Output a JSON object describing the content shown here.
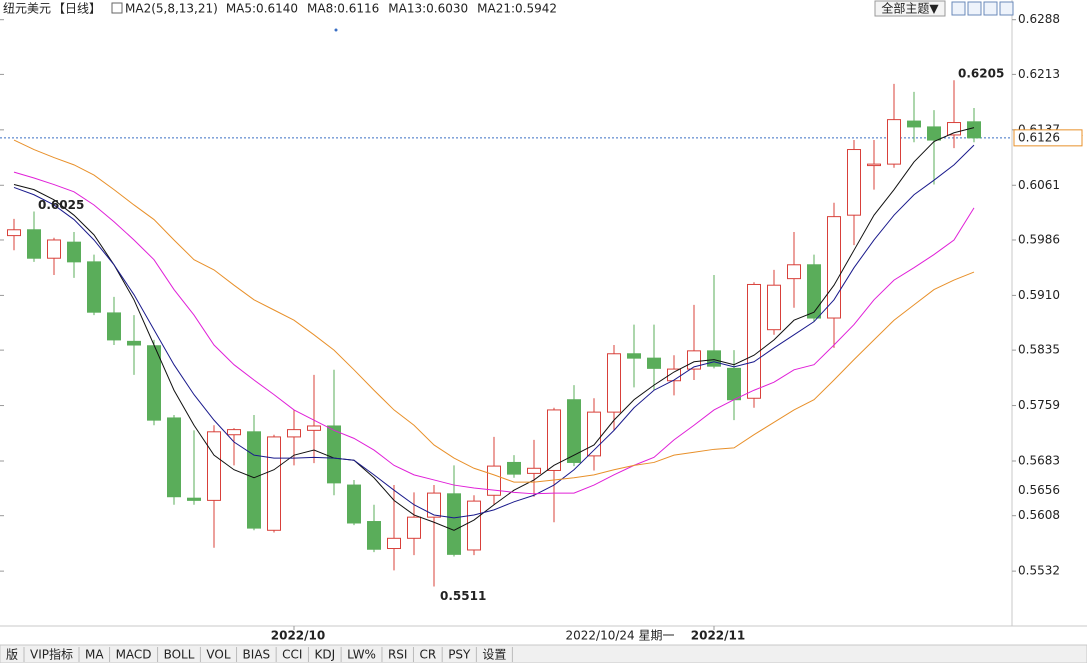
{
  "chart_data": {
    "type": "candlestick",
    "title": "纽元美元",
    "period": "【日线】",
    "indicator": "MA2(5,8,13,21)",
    "categories": [
      null,
      null,
      null,
      null,
      null,
      null,
      null,
      null,
      null,
      null,
      null,
      null,
      null,
      null,
      "2022/10",
      null,
      null,
      null,
      null,
      null,
      null,
      null,
      null,
      null,
      null,
      null,
      null,
      null,
      null,
      null,
      null,
      null,
      null,
      null,
      null,
      "2022/11",
      null,
      null,
      null,
      null,
      null,
      null,
      null,
      null,
      null,
      null,
      null,
      null,
      null
    ],
    "series": [
      {
        "type": "candlestick",
        "up_color": "#d8403a",
        "down_color": "#5aad5a",
        "open": [
          0.5992,
          0.6,
          0.5961,
          0.5983,
          0.5956,
          0.5886,
          0.5847,
          0.5841,
          0.5742,
          0.5632,
          0.5629,
          0.5719,
          0.5723,
          0.5588,
          0.5716,
          0.5725,
          0.5731,
          0.565,
          0.56,
          0.5563,
          0.5577,
          0.5606,
          0.5638,
          0.5561,
          0.5636,
          0.5681,
          0.5666,
          0.567,
          0.5767,
          0.569,
          0.575,
          0.583,
          0.5824,
          0.5793,
          0.5809,
          0.5834,
          0.581,
          0.5769,
          0.5863,
          0.5933,
          0.5952,
          0.5879,
          0.602,
          0.6088,
          0.609,
          0.6149,
          0.6141,
          0.613,
          0.6148
        ],
        "high": [
          0.6015,
          0.6025,
          0.5989,
          0.5997,
          0.5966,
          0.5908,
          0.5883,
          0.5849,
          0.5746,
          0.5725,
          0.5732,
          0.5728,
          0.5746,
          0.5719,
          0.5753,
          0.5801,
          0.5808,
          0.5657,
          0.5623,
          0.565,
          0.564,
          0.565,
          0.5677,
          0.5636,
          0.5716,
          0.5691,
          0.5712,
          0.5756,
          0.5787,
          0.5769,
          0.5842,
          0.587,
          0.587,
          0.5828,
          0.5897,
          0.5938,
          0.5835,
          0.5928,
          0.5945,
          0.5997,
          0.5966,
          0.6037,
          0.6123,
          0.6123,
          0.62,
          0.6189,
          0.6164,
          0.6205,
          0.6167
        ],
        "low": [
          0.5972,
          0.5956,
          0.5938,
          0.5934,
          0.5883,
          0.5842,
          0.5801,
          0.5732,
          0.5623,
          0.5623,
          0.5564,
          0.5677,
          0.5588,
          0.5585,
          0.5677,
          0.568,
          0.5636,
          0.5595,
          0.5558,
          0.5533,
          0.5554,
          0.5511,
          0.5552,
          0.5554,
          0.5623,
          0.566,
          0.5634,
          0.5599,
          0.5676,
          0.567,
          0.5725,
          0.5784,
          0.578,
          0.5773,
          0.5794,
          0.581,
          0.5739,
          0.5756,
          0.5856,
          0.5893,
          0.5874,
          0.5838,
          0.5979,
          0.6055,
          0.6085,
          0.612,
          0.6062,
          0.6112,
          0.612
        ],
        "close": [
          0.6,
          0.5961,
          0.5986,
          0.5956,
          0.5887,
          0.5849,
          0.5842,
          0.5739,
          0.5634,
          0.5629,
          0.5723,
          0.5726,
          0.5591,
          0.5716,
          0.5726,
          0.5731,
          0.5653,
          0.5598,
          0.5562,
          0.5577,
          0.5606,
          0.5639,
          0.5555,
          0.5628,
          0.5676,
          0.5665,
          0.5673,
          0.5753,
          0.5681,
          0.575,
          0.583,
          0.5824,
          0.581,
          0.5809,
          0.5834,
          0.5813,
          0.5767,
          0.5925,
          0.5924,
          0.5952,
          0.5879,
          0.6018,
          0.611,
          0.609,
          0.6151,
          0.6141,
          0.6123,
          0.6147,
          0.6126
        ]
      },
      {
        "type": "line",
        "name": "MA5:0.6140",
        "color": "#111111",
        "values": [
          0.6062,
          0.6055,
          0.6041,
          0.602,
          0.5993,
          0.5952,
          0.5904,
          0.5842,
          0.578,
          0.5732,
          0.5691,
          0.5671,
          0.566,
          0.5671,
          0.5691,
          0.5698,
          0.5687,
          0.5684,
          0.566,
          0.5629,
          0.5609,
          0.5599,
          0.5588,
          0.5602,
          0.5623,
          0.5643,
          0.5657,
          0.5677,
          0.5691,
          0.5705,
          0.5739,
          0.5767,
          0.5787,
          0.5805,
          0.5819,
          0.5822,
          0.5815,
          0.5828,
          0.5849,
          0.5876,
          0.5887,
          0.5924,
          0.5972,
          0.602,
          0.6055,
          0.6093,
          0.6121,
          0.6133,
          0.614
        ]
      },
      {
        "type": "line",
        "name": "MA8:0.6116",
        "color": "#1a1a8c",
        "values": [
          0.6058,
          0.6048,
          0.6034,
          0.6014,
          0.5986,
          0.5952,
          0.5911,
          0.5863,
          0.5815,
          0.5774,
          0.5739,
          0.5709,
          0.5691,
          0.5687,
          0.5687,
          0.5688,
          0.5687,
          0.5684,
          0.5664,
          0.5643,
          0.5623,
          0.5609,
          0.5605,
          0.5609,
          0.5616,
          0.5627,
          0.5636,
          0.565,
          0.5671,
          0.5698,
          0.5725,
          0.5756,
          0.578,
          0.5794,
          0.5812,
          0.5819,
          0.5812,
          0.5819,
          0.5838,
          0.5856,
          0.5874,
          0.5904,
          0.5948,
          0.5986,
          0.602,
          0.6048,
          0.6068,
          0.6089,
          0.6116
        ]
      },
      {
        "type": "line",
        "name": "MA13:0.6030",
        "color": "#e020d8",
        "values": [
          0.6079,
          0.6071,
          0.6062,
          0.6052,
          0.6034,
          0.6011,
          0.5986,
          0.5959,
          0.5918,
          0.5883,
          0.5842,
          0.5815,
          0.5794,
          0.5774,
          0.5753,
          0.5739,
          0.5725,
          0.5714,
          0.5698,
          0.5677,
          0.5664,
          0.5657,
          0.565,
          0.5646,
          0.5643,
          0.564,
          0.5638,
          0.5639,
          0.5639,
          0.565,
          0.5664,
          0.5677,
          0.5688,
          0.5712,
          0.5732,
          0.5753,
          0.5767,
          0.578,
          0.5791,
          0.5808,
          0.5815,
          0.5842,
          0.587,
          0.5904,
          0.5931,
          0.5948,
          0.5966,
          0.5986,
          0.603
        ]
      },
      {
        "type": "line",
        "name": "MA21:0.5942",
        "color": "#e8902a",
        "values": [
          0.6123,
          0.611,
          0.6099,
          0.6089,
          0.6075,
          0.6055,
          0.6034,
          0.6014,
          0.5986,
          0.5959,
          0.5945,
          0.5924,
          0.5904,
          0.589,
          0.5876,
          0.5856,
          0.5835,
          0.5808,
          0.578,
          0.5753,
          0.5732,
          0.5705,
          0.5687,
          0.5673,
          0.5664,
          0.5654,
          0.5654,
          0.5657,
          0.566,
          0.5664,
          0.5671,
          0.5677,
          0.5681,
          0.5691,
          0.5695,
          0.5699,
          0.5701,
          0.5719,
          0.5736,
          0.5753,
          0.5767,
          0.5794,
          0.5822,
          0.5849,
          0.5876,
          0.5897,
          0.5918,
          0.5931,
          0.5942
        ]
      }
    ],
    "ylim": [
      0.5465,
      0.6315
    ],
    "yticks": [
      0.6288,
      0.6213,
      0.6137,
      0.6061,
      0.5986,
      {
        "value": 0.591,
        "label": "0.5910"
      },
      0.5835,
      0.5759,
      0.5683,
      0.5608,
      0.5532
    ],
    "grid": false,
    "cursor_price": 0.5656,
    "cursor_label": "2022/10/24 星期一"
  },
  "toolbar": {
    "theme_button": "全部主题▼"
  },
  "tabs": [
    "版",
    "VIP指标",
    "MA",
    "MACD",
    "BOLL",
    "VOL",
    "BIAS",
    "CCI",
    "KDJ",
    "LW%",
    "RSI",
    "CR",
    "PSY",
    "设置"
  ]
}
